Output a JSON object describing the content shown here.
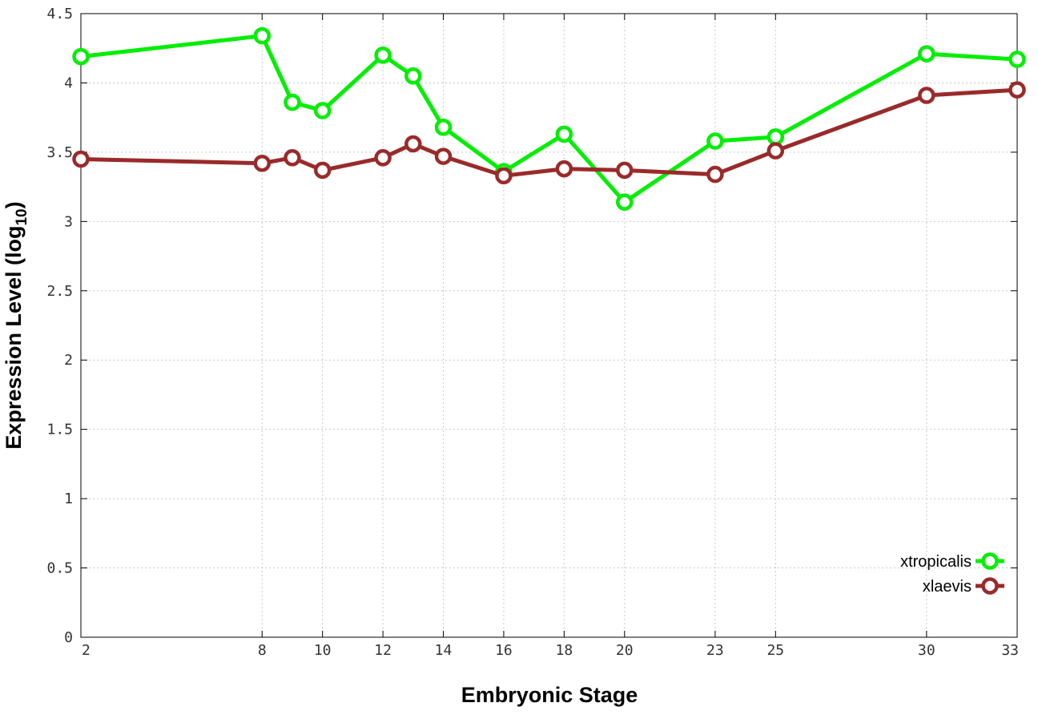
{
  "chart_data": {
    "type": "line",
    "xlabel": "Embryonic Stage",
    "ylabel": "Expression Level (log",
    "ylabel_subscript": "10",
    "ylabel_close": ")",
    "xlim": [
      2,
      33
    ],
    "ylim": [
      0,
      4.5
    ],
    "x_ticks": [
      2,
      8,
      10,
      12,
      14,
      16,
      18,
      20,
      23,
      25,
      30,
      33
    ],
    "y_ticks": [
      0,
      0.5,
      1,
      1.5,
      2,
      2.5,
      3,
      3.5,
      4,
      4.5
    ],
    "y_tick_labels": [
      "0",
      "0.5",
      "1",
      "1.5",
      "2",
      "2.5",
      "3",
      "3.5",
      "4",
      "4.5"
    ],
    "grid": true,
    "legend_position": "bottom-right",
    "series": [
      {
        "name": "xtropicalis",
        "color": "#00ee00",
        "x": [
          2,
          8,
          9,
          10,
          12,
          13,
          14,
          16,
          18,
          20,
          23,
          25,
          30,
          33
        ],
        "values": [
          4.19,
          4.34,
          3.86,
          3.8,
          4.2,
          4.05,
          3.68,
          3.36,
          3.63,
          3.14,
          3.58,
          3.61,
          4.21,
          4.17
        ]
      },
      {
        "name": "xlaevis",
        "color": "#9a2a2a",
        "x": [
          2,
          8,
          9,
          10,
          12,
          13,
          14,
          16,
          18,
          20,
          23,
          25,
          30,
          33
        ],
        "values": [
          3.45,
          3.42,
          3.46,
          3.37,
          3.46,
          3.56,
          3.47,
          3.33,
          3.38,
          3.37,
          3.34,
          3.51,
          3.91,
          3.95
        ]
      }
    ]
  }
}
